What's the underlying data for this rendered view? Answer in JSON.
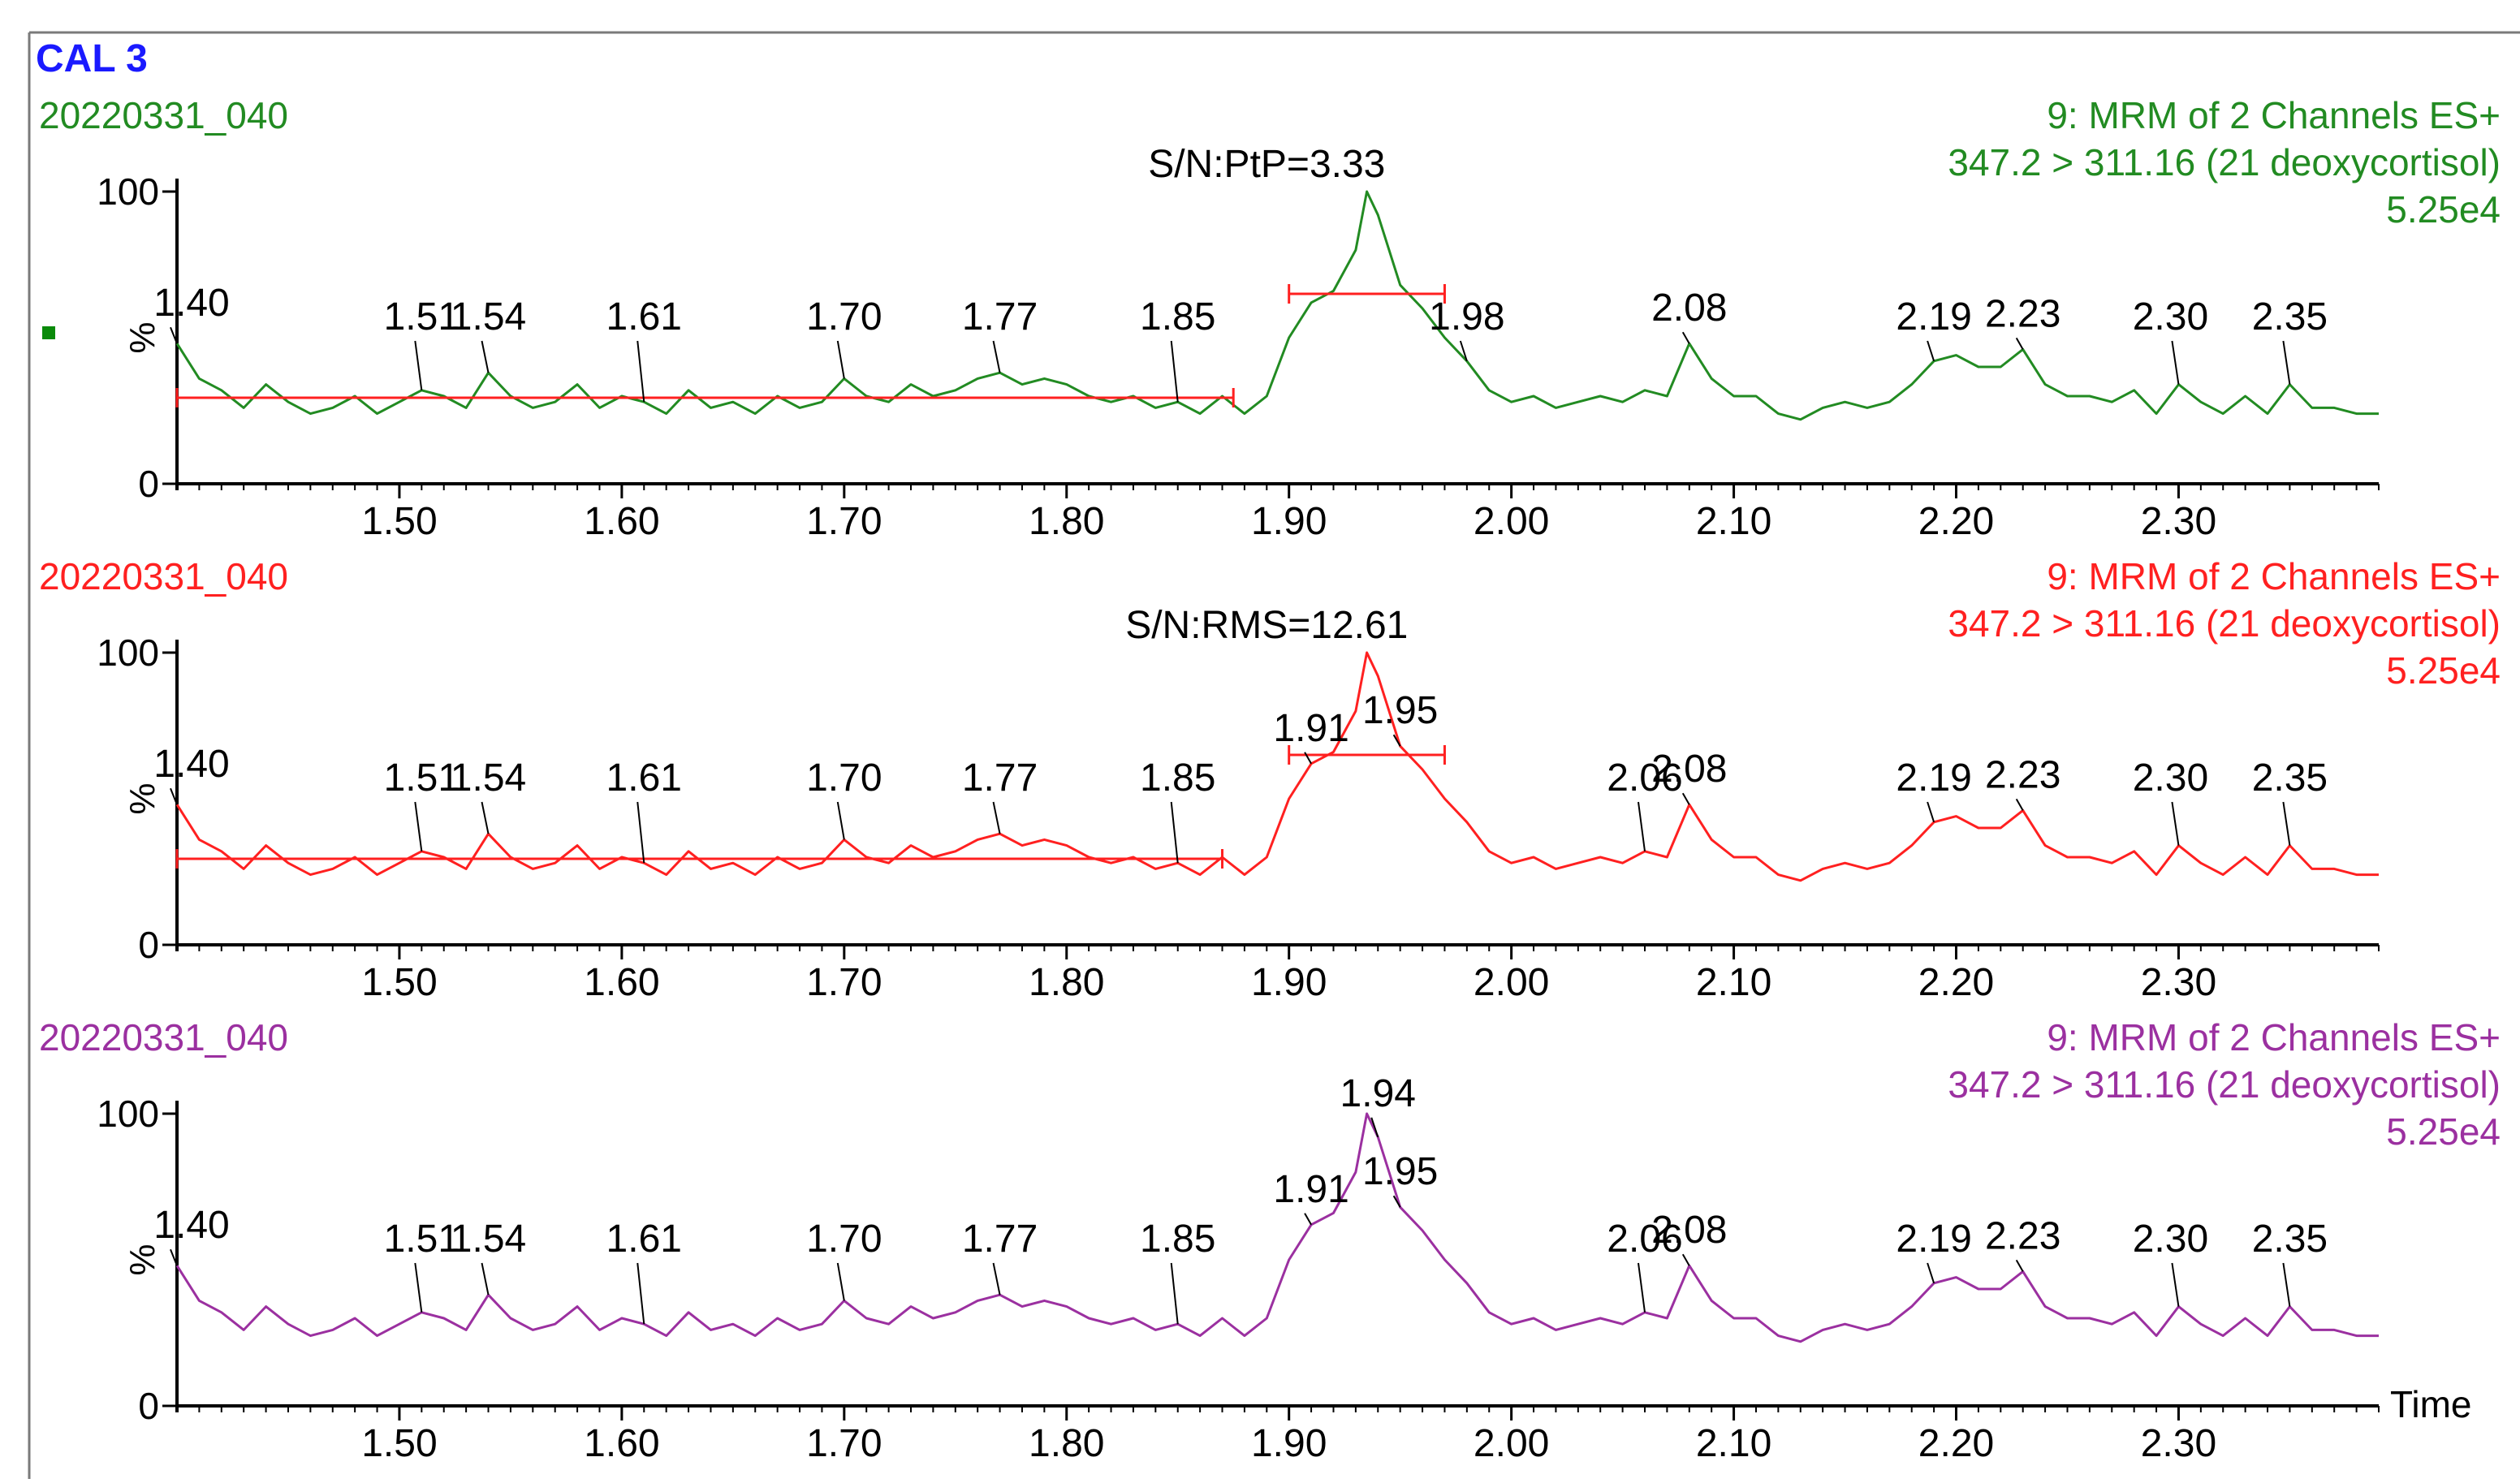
{
  "window": {
    "title": "CAL 3",
    "title_color": "#1a1aff",
    "frame_color": "#7a7a7a"
  },
  "chart_data": [
    {
      "type": "line",
      "title": "20220331_040",
      "header_lines": [
        "9: MRM of 2 Channels ES+",
        "347.2 > 311.16 (21 deoxycortisol)",
        "5.25e4"
      ],
      "color": "#228b22",
      "xlabel": "",
      "ylabel": "%",
      "ylim": [
        0,
        100
      ],
      "xlim": [
        1.4,
        2.39
      ],
      "xticks": [
        "1.50",
        "1.60",
        "1.70",
        "1.80",
        "1.90",
        "2.00",
        "2.10",
        "2.20",
        "2.30"
      ],
      "yticks": [
        "0",
        "100"
      ],
      "annotation": "S/N:PtP=3.33",
      "noise_range": [
        1.4,
        1.875
      ],
      "peak_width_range": [
        1.9,
        1.97
      ],
      "peak_labels": [
        {
          "label": "1.40",
          "x": 1.4
        },
        {
          "label": "1.51",
          "x": 1.51
        },
        {
          "label": "1.54",
          "x": 1.54
        },
        {
          "label": "1.61",
          "x": 1.61
        },
        {
          "label": "1.70",
          "x": 1.7
        },
        {
          "label": "1.77",
          "x": 1.77
        },
        {
          "label": "1.85",
          "x": 1.85
        },
        {
          "label": "1.98",
          "x": 1.98
        },
        {
          "label": "2.08",
          "x": 2.08
        },
        {
          "label": "2.19",
          "x": 2.19
        },
        {
          "label": "2.23",
          "x": 2.23
        },
        {
          "label": "2.30",
          "x": 2.3
        },
        {
          "label": "2.35",
          "x": 2.35
        }
      ],
      "x": [
        1.4,
        1.41,
        1.42,
        1.43,
        1.44,
        1.45,
        1.46,
        1.47,
        1.48,
        1.49,
        1.5,
        1.51,
        1.52,
        1.53,
        1.54,
        1.55,
        1.56,
        1.57,
        1.58,
        1.59,
        1.6,
        1.61,
        1.62,
        1.63,
        1.64,
        1.65,
        1.66,
        1.67,
        1.68,
        1.69,
        1.7,
        1.71,
        1.72,
        1.73,
        1.74,
        1.75,
        1.76,
        1.77,
        1.78,
        1.79,
        1.8,
        1.81,
        1.82,
        1.83,
        1.84,
        1.85,
        1.86,
        1.87,
        1.88,
        1.89,
        1.9,
        1.91,
        1.92,
        1.93,
        1.935,
        1.94,
        1.95,
        1.96,
        1.97,
        1.98,
        1.99,
        2.0,
        2.01,
        2.02,
        2.03,
        2.04,
        2.05,
        2.06,
        2.07,
        2.08,
        2.09,
        2.1,
        2.11,
        2.12,
        2.13,
        2.14,
        2.15,
        2.16,
        2.17,
        2.18,
        2.19,
        2.2,
        2.21,
        2.22,
        2.23,
        2.24,
        2.25,
        2.26,
        2.27,
        2.28,
        2.29,
        2.3,
        2.31,
        2.32,
        2.33,
        2.34,
        2.35,
        2.36,
        2.37,
        2.38,
        2.39
      ],
      "values": [
        48,
        36,
        32,
        26,
        34,
        28,
        24,
        26,
        30,
        24,
        28,
        32,
        30,
        26,
        38,
        30,
        26,
        28,
        34,
        26,
        30,
        28,
        24,
        32,
        26,
        28,
        24,
        30,
        26,
        28,
        36,
        30,
        28,
        34,
        30,
        32,
        36,
        38,
        34,
        36,
        34,
        30,
        28,
        30,
        26,
        28,
        24,
        30,
        24,
        30,
        50,
        62,
        66,
        80,
        100,
        92,
        68,
        60,
        50,
        42,
        32,
        28,
        30,
        26,
        28,
        30,
        28,
        32,
        30,
        48,
        36,
        30,
        30,
        24,
        22,
        26,
        28,
        26,
        28,
        34,
        42,
        44,
        40,
        40,
        46,
        34,
        30,
        30,
        28,
        32,
        24,
        34,
        28,
        24,
        30,
        24,
        34,
        26,
        26,
        24,
        24
      ]
    },
    {
      "type": "line",
      "title": "20220331_040",
      "header_lines": [
        "9: MRM of 2 Channels ES+",
        "347.2 > 311.16 (21 deoxycortisol)",
        "5.25e4"
      ],
      "color": "#ff2020",
      "xlabel": "",
      "ylabel": "%",
      "ylim": [
        0,
        100
      ],
      "xlim": [
        1.4,
        2.39
      ],
      "xticks": [
        "1.50",
        "1.60",
        "1.70",
        "1.80",
        "1.90",
        "2.00",
        "2.10",
        "2.20",
        "2.30"
      ],
      "yticks": [
        "0",
        "100"
      ],
      "annotation": "S/N:RMS=12.61",
      "noise_range": [
        1.4,
        1.87
      ],
      "peak_width_range": [
        1.9,
        1.97
      ],
      "peak_labels": [
        {
          "label": "1.40",
          "x": 1.4
        },
        {
          "label": "1.51",
          "x": 1.51
        },
        {
          "label": "1.54",
          "x": 1.54
        },
        {
          "label": "1.61",
          "x": 1.61
        },
        {
          "label": "1.70",
          "x": 1.7
        },
        {
          "label": "1.77",
          "x": 1.77
        },
        {
          "label": "1.85",
          "x": 1.85
        },
        {
          "label": "1.91",
          "x": 1.91
        },
        {
          "label": "1.95",
          "x": 1.95
        },
        {
          "label": "2.06",
          "x": 2.06
        },
        {
          "label": "2.08",
          "x": 2.08
        },
        {
          "label": "2.19",
          "x": 2.19
        },
        {
          "label": "2.23",
          "x": 2.23
        },
        {
          "label": "2.30",
          "x": 2.3
        },
        {
          "label": "2.35",
          "x": 2.35
        }
      ],
      "x": [
        1.4,
        1.41,
        1.42,
        1.43,
        1.44,
        1.45,
        1.46,
        1.47,
        1.48,
        1.49,
        1.5,
        1.51,
        1.52,
        1.53,
        1.54,
        1.55,
        1.56,
        1.57,
        1.58,
        1.59,
        1.6,
        1.61,
        1.62,
        1.63,
        1.64,
        1.65,
        1.66,
        1.67,
        1.68,
        1.69,
        1.7,
        1.71,
        1.72,
        1.73,
        1.74,
        1.75,
        1.76,
        1.77,
        1.78,
        1.79,
        1.8,
        1.81,
        1.82,
        1.83,
        1.84,
        1.85,
        1.86,
        1.87,
        1.88,
        1.89,
        1.9,
        1.91,
        1.92,
        1.93,
        1.935,
        1.94,
        1.95,
        1.96,
        1.97,
        1.98,
        1.99,
        2.0,
        2.01,
        2.02,
        2.03,
        2.04,
        2.05,
        2.06,
        2.07,
        2.08,
        2.09,
        2.1,
        2.11,
        2.12,
        2.13,
        2.14,
        2.15,
        2.16,
        2.17,
        2.18,
        2.19,
        2.2,
        2.21,
        2.22,
        2.23,
        2.24,
        2.25,
        2.26,
        2.27,
        2.28,
        2.29,
        2.3,
        2.31,
        2.32,
        2.33,
        2.34,
        2.35,
        2.36,
        2.37,
        2.38,
        2.39
      ],
      "values": [
        48,
        36,
        32,
        26,
        34,
        28,
        24,
        26,
        30,
        24,
        28,
        32,
        30,
        26,
        38,
        30,
        26,
        28,
        34,
        26,
        30,
        28,
        24,
        32,
        26,
        28,
        24,
        30,
        26,
        28,
        36,
        30,
        28,
        34,
        30,
        32,
        36,
        38,
        34,
        36,
        34,
        30,
        28,
        30,
        26,
        28,
        24,
        30,
        24,
        30,
        50,
        62,
        66,
        80,
        100,
        92,
        68,
        60,
        50,
        42,
        32,
        28,
        30,
        26,
        28,
        30,
        28,
        32,
        30,
        48,
        36,
        30,
        30,
        24,
        22,
        26,
        28,
        26,
        28,
        34,
        42,
        44,
        40,
        40,
        46,
        34,
        30,
        30,
        28,
        32,
        24,
        34,
        28,
        24,
        30,
        24,
        34,
        26,
        26,
        24,
        24
      ]
    },
    {
      "type": "line",
      "title": "20220331_040",
      "header_lines": [
        "9: MRM of 2 Channels ES+",
        "347.2 > 311.16 (21 deoxycortisol)",
        "5.25e4"
      ],
      "color": "#9b30a0",
      "xlabel": "Time",
      "ylabel": "%",
      "ylim": [
        0,
        100
      ],
      "xlim": [
        1.4,
        2.39
      ],
      "xticks": [
        "1.50",
        "1.60",
        "1.70",
        "1.80",
        "1.90",
        "2.00",
        "2.10",
        "2.20",
        "2.30"
      ],
      "yticks": [
        "0",
        "100"
      ],
      "annotation": "",
      "noise_range": null,
      "peak_width_range": null,
      "peak_labels": [
        {
          "label": "1.40",
          "x": 1.4
        },
        {
          "label": "1.51",
          "x": 1.51
        },
        {
          "label": "1.54",
          "x": 1.54
        },
        {
          "label": "1.61",
          "x": 1.61
        },
        {
          "label": "1.70",
          "x": 1.7
        },
        {
          "label": "1.77",
          "x": 1.77
        },
        {
          "label": "1.85",
          "x": 1.85
        },
        {
          "label": "1.91",
          "x": 1.91
        },
        {
          "label": "1.94",
          "x": 1.94
        },
        {
          "label": "1.95",
          "x": 1.95
        },
        {
          "label": "2.06",
          "x": 2.06
        },
        {
          "label": "2.08",
          "x": 2.08
        },
        {
          "label": "2.19",
          "x": 2.19
        },
        {
          "label": "2.23",
          "x": 2.23
        },
        {
          "label": "2.30",
          "x": 2.3
        },
        {
          "label": "2.35",
          "x": 2.35
        }
      ],
      "x": [
        1.4,
        1.41,
        1.42,
        1.43,
        1.44,
        1.45,
        1.46,
        1.47,
        1.48,
        1.49,
        1.5,
        1.51,
        1.52,
        1.53,
        1.54,
        1.55,
        1.56,
        1.57,
        1.58,
        1.59,
        1.6,
        1.61,
        1.62,
        1.63,
        1.64,
        1.65,
        1.66,
        1.67,
        1.68,
        1.69,
        1.7,
        1.71,
        1.72,
        1.73,
        1.74,
        1.75,
        1.76,
        1.77,
        1.78,
        1.79,
        1.8,
        1.81,
        1.82,
        1.83,
        1.84,
        1.85,
        1.86,
        1.87,
        1.88,
        1.89,
        1.9,
        1.91,
        1.92,
        1.93,
        1.935,
        1.94,
        1.95,
        1.96,
        1.97,
        1.98,
        1.99,
        2.0,
        2.01,
        2.02,
        2.03,
        2.04,
        2.05,
        2.06,
        2.07,
        2.08,
        2.09,
        2.1,
        2.11,
        2.12,
        2.13,
        2.14,
        2.15,
        2.16,
        2.17,
        2.18,
        2.19,
        2.2,
        2.21,
        2.22,
        2.23,
        2.24,
        2.25,
        2.26,
        2.27,
        2.28,
        2.29,
        2.3,
        2.31,
        2.32,
        2.33,
        2.34,
        2.35,
        2.36,
        2.37,
        2.38,
        2.39
      ],
      "values": [
        48,
        36,
        32,
        26,
        34,
        28,
        24,
        26,
        30,
        24,
        28,
        32,
        30,
        26,
        38,
        30,
        26,
        28,
        34,
        26,
        30,
        28,
        24,
        32,
        26,
        28,
        24,
        30,
        26,
        28,
        36,
        30,
        28,
        34,
        30,
        32,
        36,
        38,
        34,
        36,
        34,
        30,
        28,
        30,
        26,
        28,
        24,
        30,
        24,
        30,
        50,
        62,
        66,
        80,
        100,
        92,
        68,
        60,
        50,
        42,
        32,
        28,
        30,
        26,
        28,
        30,
        28,
        32,
        30,
        48,
        36,
        30,
        30,
        24,
        22,
        26,
        28,
        26,
        28,
        34,
        42,
        44,
        40,
        40,
        46,
        34,
        30,
        30,
        28,
        32,
        24,
        34,
        28,
        24,
        30,
        24,
        34,
        26,
        26,
        24,
        24
      ]
    }
  ]
}
